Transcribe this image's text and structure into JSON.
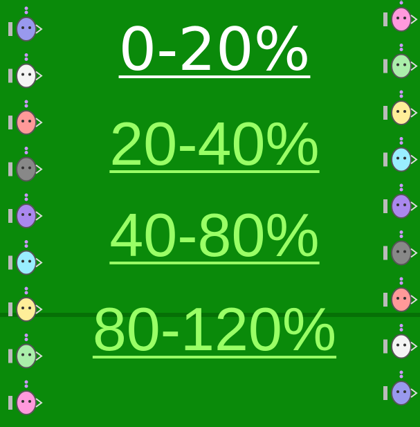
{
  "links": [
    "0-20%",
    "20-40%",
    "40-80%",
    "80-120%"
  ]
}
